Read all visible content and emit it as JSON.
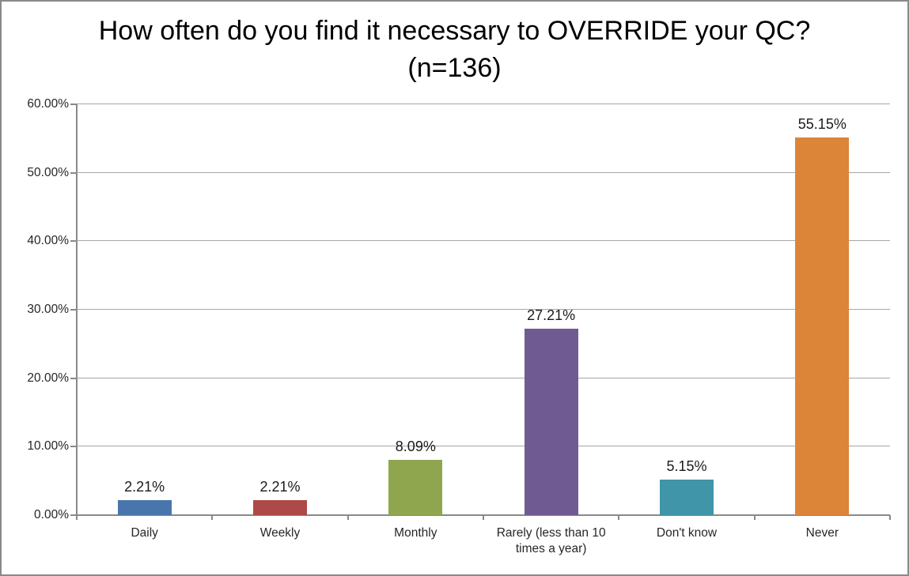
{
  "chart_data": {
    "type": "bar",
    "title": "How often do you find it necessary to OVERRIDE your QC? (n=136)",
    "categories": [
      "Daily",
      "Weekly",
      "Monthly",
      "Rarely (less than 10 times a year)",
      "Don't know",
      "Never"
    ],
    "values": [
      2.21,
      2.21,
      8.09,
      27.21,
      5.15,
      55.15
    ],
    "data_labels": [
      "2.21%",
      "2.21%",
      "8.09%",
      "27.21%",
      "5.15%",
      "55.15%"
    ],
    "bar_colors": [
      "#4876ac",
      "#ad4a47",
      "#8fa64f",
      "#6f5b92",
      "#4095a8",
      "#dc8538"
    ],
    "xlabel": "",
    "ylabel": "",
    "ylim": [
      0,
      60
    ],
    "ytick_step": 10,
    "ytick_labels": [
      "0.00%",
      "10.00%",
      "20.00%",
      "30.00%",
      "40.00%",
      "50.00%",
      "60.00%"
    ],
    "grid": "horizontal",
    "legend": "none",
    "axis_color": "#898989",
    "gridline_color": "#a6a6a6"
  }
}
